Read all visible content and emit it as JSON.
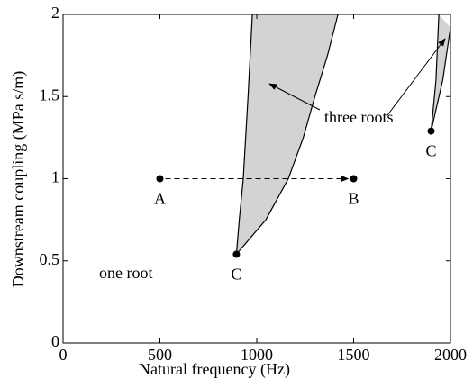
{
  "chart_data": {
    "type": "region",
    "x_label": "Natural frequency (Hz)",
    "y_label": "Downstream coupling (MPa s/m)",
    "xlim": [
      0,
      2000
    ],
    "ylim": [
      0,
      2
    ],
    "xticks": [
      0,
      500,
      1000,
      1500,
      2000
    ],
    "yticks": [
      0,
      0.5,
      1,
      1.5,
      2
    ],
    "grid": false,
    "fill_color": "#d3d3d3",
    "regions": [
      {
        "left": {
          "x": [
            895,
            910,
            930,
            955,
            977
          ],
          "y": [
            0.54,
            0.75,
            1,
            1.5,
            2
          ]
        },
        "right": {
          "x": [
            895,
            1047,
            1163,
            1240,
            1300,
            1365,
            1419
          ],
          "y": [
            0.54,
            0.75,
            1,
            1.25,
            1.5,
            1.75,
            2
          ]
        }
      },
      {
        "left": {
          "x": [
            1900,
            1925,
            1940
          ],
          "y": [
            1.29,
            1.6,
            2
          ]
        },
        "right": {
          "x": [
            1900,
            1960,
            2000
          ],
          "y": [
            1.29,
            1.6,
            1.92
          ]
        }
      }
    ],
    "points": [
      {
        "label": "A",
        "x": 500,
        "y": 1
      },
      {
        "label": "B",
        "x": 1500,
        "y": 1
      },
      {
        "label": "C",
        "x": 895,
        "y": 0.54
      },
      {
        "label": "C",
        "x": 1900,
        "y": 1.29
      }
    ],
    "annotations": [
      "one root",
      "three roots"
    ]
  }
}
